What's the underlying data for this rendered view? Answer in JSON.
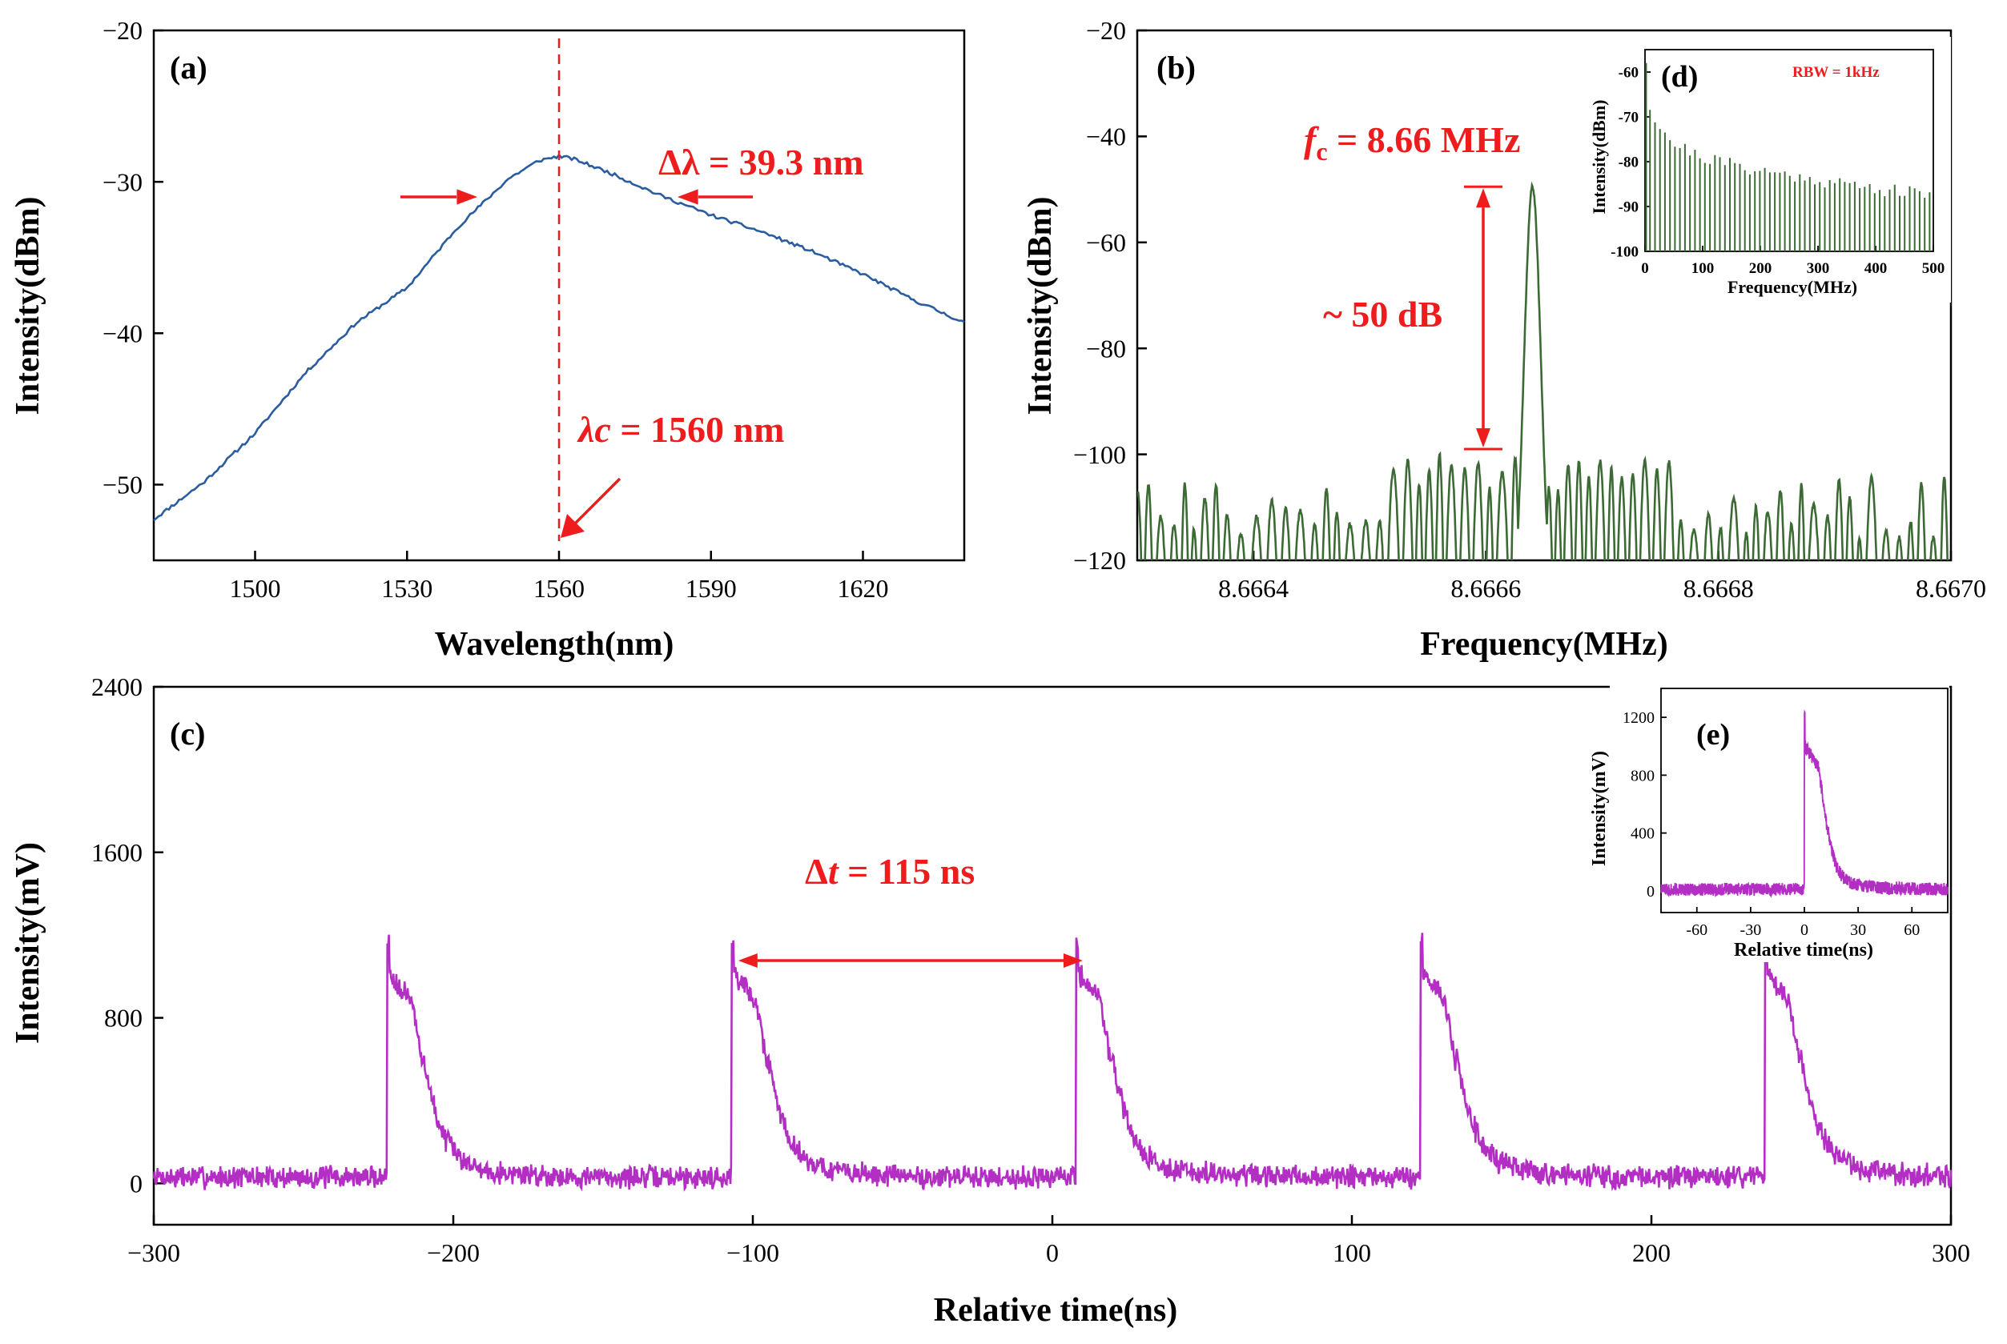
{
  "chart_data": [
    {
      "panel": "(a)",
      "type": "line",
      "xlabel": "Wavelength(nm)",
      "ylabel": "Intensity(dBm)",
      "xlim": [
        1480,
        1640
      ],
      "ylim": [
        -55,
        -20
      ],
      "xticks": [
        1500,
        1530,
        1560,
        1590,
        1620
      ],
      "yticks": [
        -50,
        -40,
        -30,
        -20
      ],
      "xtick_labels": [
        "1500",
        "1530",
        "1560",
        "1590",
        "1620"
      ],
      "ytick_labels": [
        "−50",
        "−40",
        "−30",
        "−20"
      ],
      "color": "#2a5ca0",
      "series": [
        {
          "name": "spectrum",
          "x": [
            1480,
            1490,
            1500,
            1510,
            1520,
            1530,
            1540,
            1550,
            1556,
            1560,
            1563,
            1570,
            1580,
            1590,
            1600,
            1610,
            1620,
            1630,
            1640
          ],
          "y": [
            -52.3,
            -49.8,
            -46.6,
            -42.6,
            -39.3,
            -37.0,
            -33.0,
            -29.8,
            -28.6,
            -28.3,
            -28.5,
            -29.4,
            -30.9,
            -32.2,
            -33.3,
            -34.6,
            -36.1,
            -37.8,
            -39.3
          ]
        }
      ],
      "annotations": {
        "fwhm": "Δλ = 39.3 nm",
        "center_prefix": "λc",
        "center_value": " = 1560 nm"
      },
      "center_wavelength": 1560,
      "fwhm_nm": 39.3
    },
    {
      "panel": "(b)",
      "type": "line",
      "xlabel": "Frequency(MHz)",
      "ylabel": "Intensity(dBm)",
      "xlim": [
        8.6663,
        8.667
      ],
      "ylim": [
        -120,
        -20
      ],
      "xticks": [
        8.6664,
        8.6666,
        8.6668,
        8.667
      ],
      "yticks": [
        -120,
        -100,
        -80,
        -60,
        -40,
        -20
      ],
      "xtick_labels": [
        "8.6664",
        "8.6666",
        "8.6668",
        "8.6670"
      ],
      "ytick_labels": [
        "−120",
        "−100",
        "−80",
        "−60",
        "−40",
        "−20"
      ],
      "color": "#3c6a34",
      "peak": {
        "x": 8.66664,
        "y": -49.5
      },
      "noise_floor": -99,
      "annotations": {
        "fc_italic": "f",
        "fc_sub": "c",
        "fc_value": " = 8.66 MHz",
        "snr": "~ 50 dB"
      }
    },
    {
      "panel": "(d)",
      "type": "bar",
      "xlabel": "Frequency(MHz)",
      "ylabel": "Intensity(dBm)",
      "xlim": [
        0,
        500
      ],
      "ylim": [
        -100,
        -55
      ],
      "xticks": [
        0,
        100,
        200,
        300,
        400,
        500
      ],
      "yticks": [
        -100,
        -90,
        -80,
        -70,
        -60
      ],
      "xtick_labels": [
        "0",
        "100",
        "200",
        "300",
        "400",
        "500"
      ],
      "ytick_labels": [
        "-100",
        "-90",
        "-80",
        "-70",
        "-60"
      ],
      "color": "#3c6a34",
      "harmonic_spacing_mhz": 8.66,
      "envelope": {
        "x": [
          0,
          10,
          50,
          100,
          200,
          300,
          400,
          500
        ],
        "y": [
          -59,
          -69,
          -76,
          -79,
          -82,
          -84,
          -86,
          -87.5
        ]
      },
      "annotations": {
        "rbw": "RBW = 1kHz"
      }
    },
    {
      "panel": "(c)",
      "type": "line",
      "xlabel": "Relative time(ns)",
      "ylabel": "Intensity(mV)",
      "xlim": [
        -300,
        300
      ],
      "ylim": [
        -200,
        2400
      ],
      "xticks": [
        -300,
        -200,
        -100,
        0,
        100,
        200,
        300
      ],
      "yticks": [
        0,
        800,
        1600,
        2400
      ],
      "xtick_labels": [
        "−300",
        "−200",
        "−100",
        "0",
        "100",
        "200",
        "300"
      ],
      "ytick_labels": [
        "0",
        "800",
        "1600",
        "2400"
      ],
      "color": "#b32fc4",
      "pulse_times_ns": [
        -222,
        -107,
        8,
        123,
        238
      ],
      "pulse_peak_mv": 1150,
      "period_ns": 115,
      "annotations": {
        "dt_delta": "Δ",
        "dt_italic": "t",
        "dt_value": " = 115 ns"
      }
    },
    {
      "panel": "(e)",
      "type": "line",
      "xlabel": "Relative time(ns)",
      "ylabel": "Intensity(mV)",
      "xlim": [
        -80,
        80
      ],
      "ylim": [
        -150,
        1400
      ],
      "xticks": [
        -60,
        -30,
        0,
        30,
        60
      ],
      "yticks": [
        0,
        400,
        800,
        1200
      ],
      "xtick_labels": [
        "-60",
        "-30",
        "0",
        "30",
        "60"
      ],
      "ytick_labels": [
        "0",
        "400",
        "800",
        "1200"
      ],
      "color": "#b32fc4",
      "pulse_time_ns": 0,
      "pulse_peak_mv": 1250
    }
  ]
}
